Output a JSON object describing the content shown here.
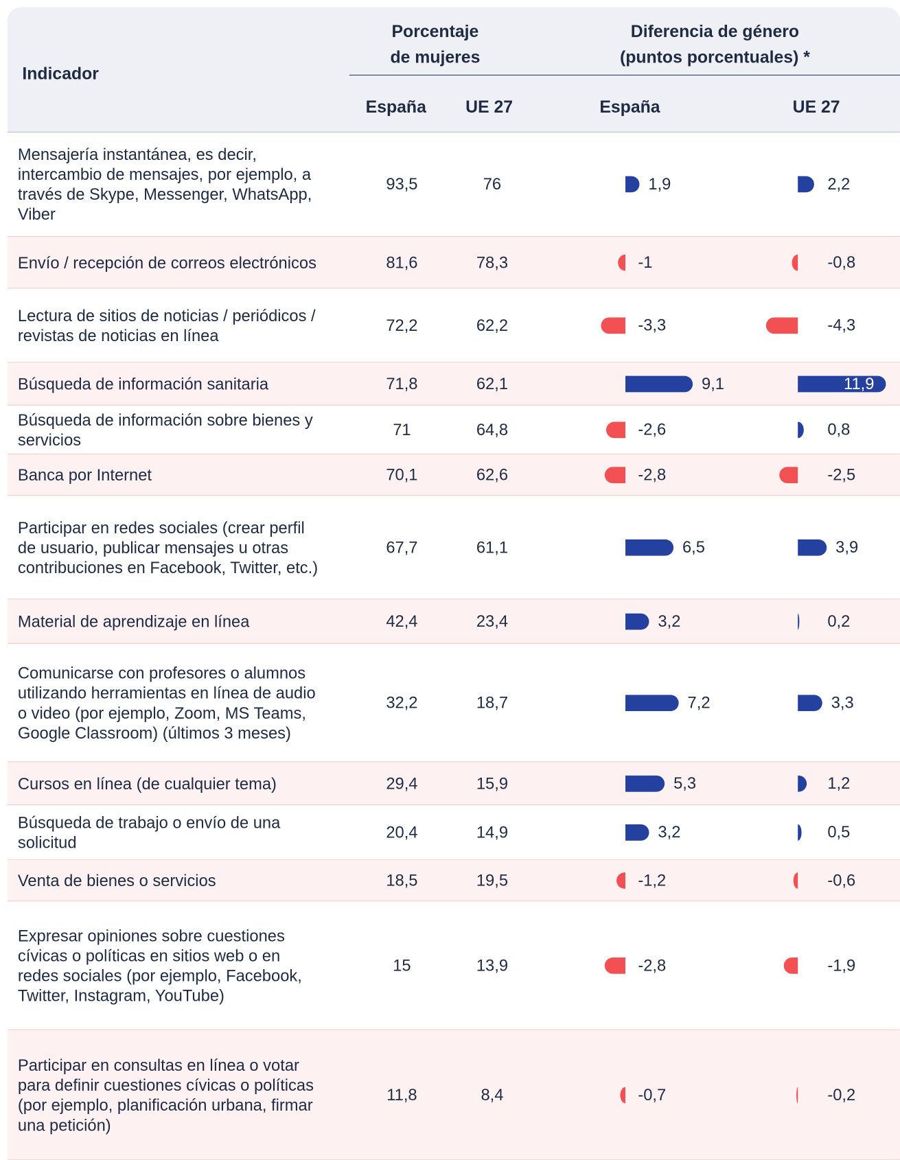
{
  "header": {
    "indicator": "Indicador",
    "women_pct": [
      "Porcentaje",
      "de mujeres"
    ],
    "gender_gap": [
      "Diferencia de género",
      "(puntos porcentuales) *"
    ],
    "columns": [
      "España",
      "UE 27",
      "España",
      "UE 27"
    ]
  },
  "table": {
    "colors": {
      "positive": "#2541a0",
      "negative": "#f25052"
    },
    "rows": [
      {
        "indicator": "Mensajería instantánea, es decir, intercambio de mensajes, por ejemplo, a través de Skype, Messenger, WhatsApp, Viber",
        "spain_pct": "93,5",
        "eu_pct": "76",
        "spain_gap": {
          "value": 1.9,
          "label": "1,9"
        },
        "eu_gap": {
          "value": 2.2,
          "label": "2,2"
        }
      },
      {
        "indicator": "Envío / recepción de correos electrónicos",
        "spain_pct": "81,6",
        "eu_pct": "78,3",
        "spain_gap": {
          "value": -1,
          "label": "-1"
        },
        "eu_gap": {
          "value": -0.8,
          "label": "-0,8"
        }
      },
      {
        "indicator": "Lectura de sitios de noticias / periódicos / revistas de noticias en línea",
        "spain_pct": "72,2",
        "eu_pct": "62,2",
        "spain_gap": {
          "value": -3.3,
          "label": "-3,3"
        },
        "eu_gap": {
          "value": -4.3,
          "label": "-4,3"
        }
      },
      {
        "indicator": "Búsqueda de información sanitaria",
        "spain_pct": "71,8",
        "eu_pct": "62,1",
        "spain_gap": {
          "value": 9.1,
          "label": "9,1"
        },
        "eu_gap": {
          "value": 11.9,
          "label": "11,9"
        }
      },
      {
        "indicator": "Búsqueda de información sobre bienes y servicios",
        "spain_pct": "71",
        "eu_pct": "64,8",
        "spain_gap": {
          "value": -2.6,
          "label": "-2,6"
        },
        "eu_gap": {
          "value": 0.8,
          "label": "0,8"
        }
      },
      {
        "indicator": "Banca por Internet",
        "spain_pct": "70,1",
        "eu_pct": "62,6",
        "spain_gap": {
          "value": -2.8,
          "label": "-2,8"
        },
        "eu_gap": {
          "value": -2.5,
          "label": "-2,5"
        }
      },
      {
        "indicator": "Participar en redes sociales (crear perfil de usuario, publicar mensajes u otras contribuciones en Facebook, Twitter, etc.)",
        "spain_pct": "67,7",
        "eu_pct": "61,1",
        "spain_gap": {
          "value": 6.5,
          "label": "6,5"
        },
        "eu_gap": {
          "value": 3.9,
          "label": "3,9"
        }
      },
      {
        "indicator": "Material de aprendizaje en línea",
        "spain_pct": "42,4",
        "eu_pct": "23,4",
        "spain_gap": {
          "value": 3.2,
          "label": "3,2"
        },
        "eu_gap": {
          "value": 0.2,
          "label": "0,2"
        }
      },
      {
        "indicator": "Comunicarse con profesores o alumnos utilizando herramientas en línea de audio o video (por ejemplo, Zoom, MS Teams, Google Classroom) (últimos 3 meses)",
        "spain_pct": "32,2",
        "eu_pct": "18,7",
        "spain_gap": {
          "value": 7.2,
          "label": "7,2"
        },
        "eu_gap": {
          "value": 3.3,
          "label": "3,3"
        }
      },
      {
        "indicator": "Cursos en línea (de cualquier tema)",
        "spain_pct": "29,4",
        "eu_pct": "15,9",
        "spain_gap": {
          "value": 5.3,
          "label": "5,3"
        },
        "eu_gap": {
          "value": 1.2,
          "label": "1,2"
        }
      },
      {
        "indicator": "Búsqueda de trabajo o envío de una solicitud",
        "spain_pct": "20,4",
        "eu_pct": "14,9",
        "spain_gap": {
          "value": 3.2,
          "label": "3,2"
        },
        "eu_gap": {
          "value": 0.5,
          "label": "0,5"
        }
      },
      {
        "indicator": "Venta de bienes o servicios",
        "spain_pct": "18,5",
        "eu_pct": "19,5",
        "spain_gap": {
          "value": -1.2,
          "label": "-1,2"
        },
        "eu_gap": {
          "value": -0.6,
          "label": "-0,6"
        }
      },
      {
        "indicator": "Expresar opiniones sobre cuestiones cívicas o políticas en sitios web o en redes sociales (por ejemplo, Facebook, Twitter, Instagram, YouTube)",
        "spain_pct": "15",
        "eu_pct": "13,9",
        "spain_gap": {
          "value": -2.8,
          "label": "-2,8"
        },
        "eu_gap": {
          "value": -1.9,
          "label": "-1,9"
        }
      },
      {
        "indicator": "Participar en consultas en línea o votar para definir cuestiones cívicas o políticas (por ejemplo, planificación urbana, firmar una petición)",
        "spain_pct": "11,8",
        "eu_pct": "8,4",
        "spain_gap": {
          "value": -0.7,
          "label": "-0,7"
        },
        "eu_gap": {
          "value": -0.2,
          "label": "-0,2"
        }
      }
    ]
  }
}
